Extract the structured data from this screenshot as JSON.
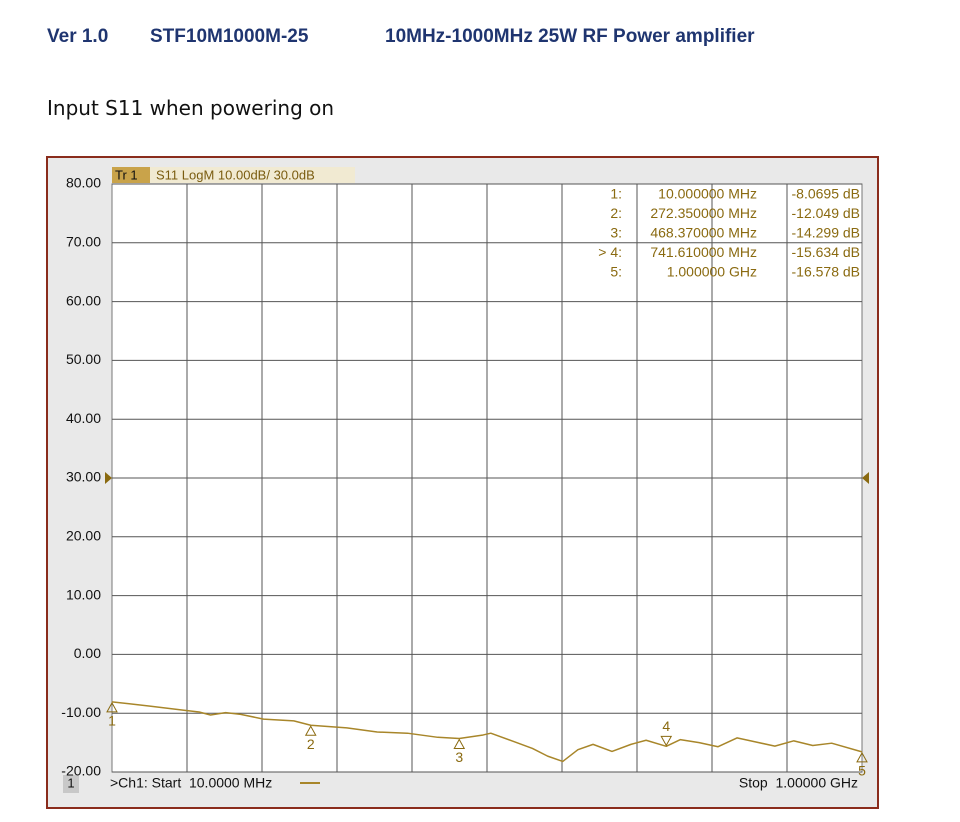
{
  "header": {
    "version": "Ver 1.0",
    "model": "STF10M1000M-25",
    "description": "10MHz-1000MHz 25W RF Power amplifier"
  },
  "section_title": "Input S11 when powering on",
  "chart_data": {
    "type": "line",
    "trace_label": "Tr 1",
    "trace_setting": "S11 LogM 10.00dB/ 30.0dB",
    "channel_label": "1",
    "start_label": ">Ch1: Start  10.0000 MHz",
    "stop_label": "Stop  1.00000 GHz",
    "xlim": [
      10,
      1000
    ],
    "x_divisions": 10,
    "ylim": [
      -20,
      80
    ],
    "yticks": [
      {
        "value": 80,
        "label": "80.00"
      },
      {
        "value": 70,
        "label": "70.00"
      },
      {
        "value": 60,
        "label": "60.00"
      },
      {
        "value": 50,
        "label": "50.00"
      },
      {
        "value": 40,
        "label": "40.00"
      },
      {
        "value": 30,
        "label": "30.00"
      },
      {
        "value": 20,
        "label": "20.00"
      },
      {
        "value": 10,
        "label": "10.00"
      },
      {
        "value": 0,
        "label": "0.00"
      },
      {
        "value": -10,
        "label": "-10.00"
      },
      {
        "value": -20,
        "label": "-20.00"
      }
    ],
    "grid": true,
    "reference_level": 30,
    "x": [
      10,
      60,
      105,
      125,
      140,
      160,
      180,
      210,
      250,
      272.35,
      320,
      360,
      400,
      440,
      468.37,
      500,
      510,
      540,
      565,
      585,
      605,
      625,
      645,
      670,
      695,
      715,
      741.61,
      760,
      785,
      810,
      835,
      860,
      885,
      910,
      935,
      960,
      1000
    ],
    "series": [
      {
        "name": "S11",
        "color": "#a8862a",
        "values": [
          -8.07,
          -8.8,
          -9.5,
          -9.8,
          -10.3,
          -9.9,
          -10.2,
          -11.0,
          -11.3,
          -12.05,
          -12.5,
          -13.2,
          -13.4,
          -14.1,
          -14.3,
          -13.7,
          -13.4,
          -14.8,
          -16.0,
          -17.3,
          -18.2,
          -16.2,
          -15.3,
          -16.5,
          -15.3,
          -14.6,
          -15.63,
          -14.5,
          -15.0,
          -15.7,
          -14.2,
          -14.9,
          -15.6,
          -14.7,
          -15.5,
          -15.1,
          -16.58
        ]
      }
    ],
    "markers": {
      "ids": [
        "1:",
        "2:",
        "3:",
        "> 4:",
        "5:"
      ],
      "numbers": [
        "1",
        "2",
        "3",
        "4",
        "5"
      ],
      "x": [
        10,
        272.35,
        468.37,
        741.61,
        1000
      ],
      "x_labels": [
        "10.000000 MHz",
        "272.350000 MHz",
        "468.370000 MHz",
        "741.610000 MHz",
        "1.000000 GHz"
      ],
      "values": [
        -8.0695,
        -12.049,
        -14.299,
        -15.634,
        -16.578
      ],
      "value_labels": [
        "-8.0695 dB",
        "-12.049 dB",
        "-14.299 dB",
        "-15.634 dB",
        "-16.578 dB"
      ],
      "active": 3
    }
  }
}
